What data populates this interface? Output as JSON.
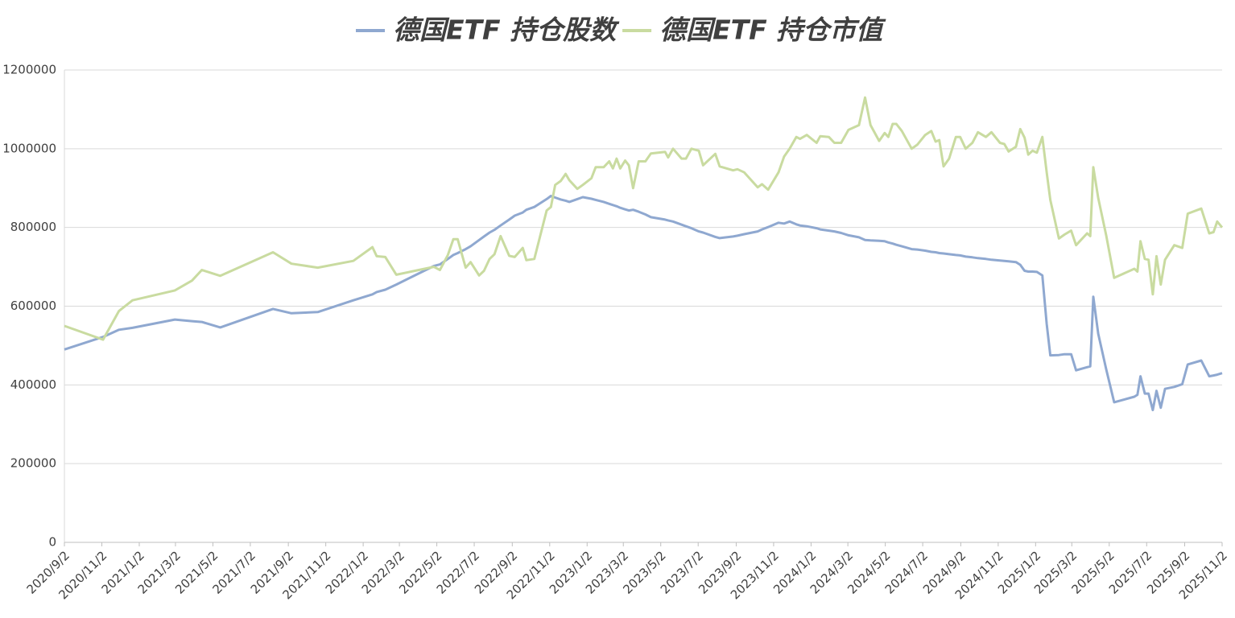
{
  "chart_data": {
    "type": "line",
    "x": [
      "2020/9/2",
      "2020/11/4",
      "2020/11/30",
      "2020/12/22",
      "2021/3/1",
      "2021/3/29",
      "2021/4/14",
      "2021/5/14",
      "2021/8/8",
      "2021/9/7",
      "2021/10/20",
      "2021/12/17",
      "2022/1/17",
      "2022/1/24",
      "2022/2/7",
      "2022/2/25",
      "2022/4/27",
      "2022/5/7",
      "2022/5/20",
      "2022/5/29",
      "2022/6/5",
      "2022/6/18",
      "2022/6/26",
      "2022/7/10",
      "2022/7/18",
      "2022/7/27",
      "2022/8/4",
      "2022/8/14",
      "2022/8/28",
      "2022/9/6",
      "2022/9/19",
      "2022/9/25",
      "2022/10/8",
      "2022/10/28",
      "2022/11/4",
      "2022/11/11",
      "2022/11/20",
      "2022/11/28",
      "2022/12/4",
      "2022/12/17",
      "2022/12/26",
      "2023/1/9",
      "2023/1/16",
      "2023/1/29",
      "2023/2/7",
      "2023/2/13",
      "2023/2/19",
      "2023/2/25",
      "2023/3/5",
      "2023/3/11",
      "2023/3/18",
      "2023/3/27",
      "2023/4/7",
      "2023/4/16",
      "2023/5/9",
      "2023/5/14",
      "2023/5/22",
      "2023/6/5",
      "2023/6/12",
      "2023/6/21",
      "2023/7/3",
      "2023/7/10",
      "2023/7/30",
      "2023/8/6",
      "2023/8/28",
      "2023/9/4",
      "2023/9/15",
      "2023/10/7",
      "2023/10/14",
      "2023/10/24",
      "2023/11/10",
      "2023/11/19",
      "2023/11/28",
      "2023/12/9",
      "2023/12/15",
      "2023/12/26",
      "2024/1/11",
      "2024/1/17",
      "2024/1/31",
      "2024/2/9",
      "2024/2/20",
      "2024/3/3",
      "2024/3/20",
      "2024/3/30",
      "2024/4/8",
      "2024/4/22",
      "2024/5/1",
      "2024/5/7",
      "2024/5/14",
      "2024/5/20",
      "2024/5/29",
      "2024/6/14",
      "2024/6/23",
      "2024/7/6",
      "2024/7/16",
      "2024/7/23",
      "2024/7/29",
      "2024/8/5",
      "2024/8/14",
      "2024/8/25",
      "2024/9/1",
      "2024/9/10",
      "2024/9/21",
      "2024/9/30",
      "2024/10/13",
      "2024/10/22",
      "2024/11/5",
      "2024/11/12",
      "2024/11/19",
      "2024/12/1",
      "2024/12/8",
      "2024/12/15",
      "2024/12/21",
      "2024/12/28",
      "2025/1/4",
      "2025/1/13",
      "2025/1/20",
      "2025/1/26",
      "2025/2/9",
      "2025/2/18",
      "2025/3/1",
      "2025/3/9",
      "2025/3/27",
      "2025/4/1",
      "2025/4/6",
      "2025/4/14",
      "2025/4/27",
      "2025/5/10",
      "2025/6/12",
      "2025/6/17",
      "2025/6/22",
      "2025/6/29",
      "2025/7/5",
      "2025/7/12",
      "2025/7/18",
      "2025/7/25",
      "2025/8/1",
      "2025/8/16",
      "2025/8/29",
      "2025/9/7",
      "2025/9/29",
      "2025/10/12",
      "2025/10/19",
      "2025/10/25",
      "2025/11/2"
    ],
    "series": [
      {
        "name": "德国ETF 持仓股数",
        "color": "#8fa8d0",
        "values": [
          490000,
          522000,
          540000,
          545000,
          566000,
          562000,
          560000,
          546000,
          593000,
          582000,
          585000,
          615000,
          630000,
          636000,
          642000,
          655000,
          702000,
          706000,
          720000,
          730000,
          735000,
          745000,
          752000,
          768000,
          777000,
          787000,
          794000,
          805000,
          820000,
          830000,
          838000,
          845000,
          852000,
          872000,
          880000,
          876000,
          871000,
          868000,
          865000,
          872000,
          877000,
          873000,
          870000,
          865000,
          860000,
          857000,
          854000,
          850000,
          846000,
          843000,
          845000,
          840000,
          833000,
          826000,
          820000,
          818000,
          815000,
          807000,
          803000,
          798000,
          790000,
          787000,
          776000,
          773000,
          777000,
          779000,
          783000,
          790000,
          795000,
          801000,
          812000,
          810000,
          815000,
          808000,
          805000,
          803000,
          798000,
          795000,
          792000,
          790000,
          786000,
          780000,
          775000,
          768000,
          767000,
          766000,
          765000,
          762000,
          759000,
          756000,
          752000,
          745000,
          744000,
          741000,
          738000,
          737000,
          735000,
          734000,
          732000,
          730000,
          729000,
          726000,
          724000,
          722000,
          720000,
          718000,
          716000,
          715000,
          714000,
          712000,
          705000,
          690000,
          688000,
          688000,
          687000,
          678000,
          555000,
          475000,
          476000,
          478000,
          478000,
          437000,
          445000,
          447000,
          624000,
          530000,
          440000,
          356000,
          370000,
          375000,
          422000,
          378000,
          378000,
          336000,
          385000,
          342000,
          390000,
          395000,
          402000,
          452000,
          462000,
          422000,
          424000,
          426000,
          430000
        ]
      },
      {
        "name": "德国ETF 持仓市值",
        "color": "#c9dba0",
        "values": [
          550000,
          515000,
          588000,
          615000,
          640000,
          665000,
          692000,
          677000,
          737000,
          708000,
          698000,
          715000,
          750000,
          727000,
          725000,
          680000,
          700000,
          692000,
          730000,
          770000,
          770000,
          698000,
          712000,
          678000,
          690000,
          720000,
          732000,
          778000,
          728000,
          725000,
          748000,
          717000,
          720000,
          843000,
          852000,
          908000,
          918000,
          936000,
          920000,
          898000,
          908000,
          925000,
          953000,
          953000,
          968000,
          950000,
          975000,
          950000,
          970000,
          958000,
          900000,
          968000,
          968000,
          988000,
          992000,
          978000,
          1000000,
          975000,
          975000,
          1000000,
          995000,
          958000,
          987000,
          955000,
          945000,
          948000,
          940000,
          902000,
          910000,
          896000,
          940000,
          980000,
          1000000,
          1030000,
          1025000,
          1035000,
          1015000,
          1032000,
          1030000,
          1015000,
          1015000,
          1048000,
          1060000,
          1130000,
          1060000,
          1020000,
          1040000,
          1030000,
          1063000,
          1063000,
          1045000,
          1000000,
          1010000,
          1035000,
          1045000,
          1018000,
          1022000,
          955000,
          975000,
          1030000,
          1030000,
          1000000,
          1015000,
          1042000,
          1030000,
          1042000,
          1015000,
          1012000,
          993000,
          1005000,
          1050000,
          1028000,
          985000,
          995000,
          990000,
          1030000,
          940000,
          870000,
          772000,
          782000,
          792000,
          755000,
          785000,
          778000,
          953000,
          875000,
          780000,
          672000,
          695000,
          688000,
          765000,
          720000,
          718000,
          630000,
          727000,
          655000,
          718000,
          755000,
          748000,
          835000,
          848000,
          785000,
          788000,
          815000,
          800000
        ]
      }
    ],
    "xlim": [
      "2020/9/2",
      "2025/11/2"
    ],
    "xticks": [
      "2020/9/2",
      "2020/11/2",
      "2021/1/2",
      "2021/3/2",
      "2021/5/2",
      "2021/7/2",
      "2021/9/2",
      "2021/11/2",
      "2022/1/2",
      "2022/3/2",
      "2022/5/2",
      "2022/7/2",
      "2022/9/2",
      "2022/11/2",
      "2023/1/2",
      "2023/3/2",
      "2023/5/2",
      "2023/7/2",
      "2023/9/2",
      "2023/11/2",
      "2024/1/2",
      "2024/3/2",
      "2024/5/2",
      "2024/7/2",
      "2024/9/2",
      "2024/11/2",
      "2025/1/2",
      "2025/3/2",
      "2025/5/2",
      "2025/7/2",
      "2025/9/2",
      "2025/11/2"
    ],
    "ylim": [
      0,
      1200000
    ],
    "yticks": [
      0,
      200000,
      400000,
      600000,
      800000,
      1000000,
      1200000
    ],
    "grid": true,
    "legend": "top"
  }
}
